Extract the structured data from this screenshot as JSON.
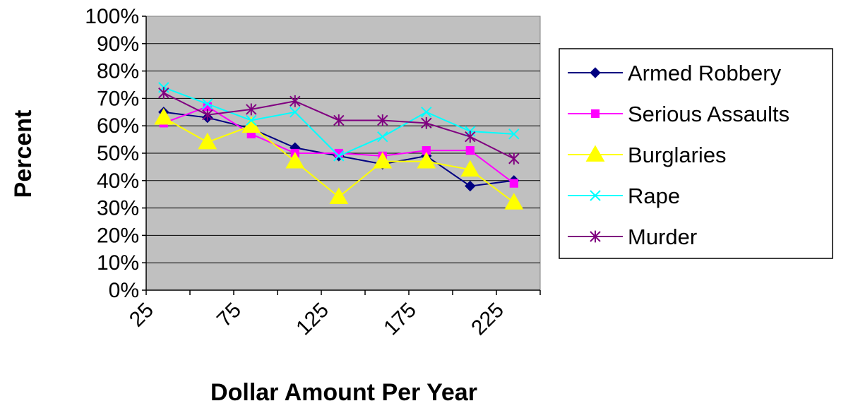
{
  "chart_data": {
    "type": "line",
    "title": "",
    "xlabel": "Dollar Amount Per Year",
    "ylabel": "Percent",
    "x": [
      35,
      60,
      85,
      110,
      135,
      160,
      185,
      210,
      235
    ],
    "x_ticks": [
      "25",
      "75",
      "125",
      "175",
      "225"
    ],
    "x_tick_values": [
      25,
      75,
      125,
      175,
      225
    ],
    "xlim": [
      25,
      250
    ],
    "ylim": [
      0,
      100
    ],
    "y_ticks": [
      "0%",
      "10%",
      "20%",
      "30%",
      "40%",
      "50%",
      "60%",
      "70%",
      "80%",
      "90%",
      "100%"
    ],
    "y_tick_values": [
      0,
      10,
      20,
      30,
      40,
      50,
      60,
      70,
      80,
      90,
      100
    ],
    "grid": "horizontal",
    "plot_background": "#c0c0c0",
    "legend_position": "right",
    "series": [
      {
        "name": "Armed Robbery",
        "color": "#000080",
        "marker": "diamond",
        "values": [
          65,
          63,
          59,
          52,
          49,
          46,
          49,
          38,
          40
        ]
      },
      {
        "name": "Serious Assaults",
        "color": "#ff00ff",
        "marker": "square",
        "values": [
          61,
          67,
          57,
          50,
          50,
          49,
          51,
          51,
          39
        ]
      },
      {
        "name": "Burglaries",
        "color": "#ffff00",
        "marker": "triangle",
        "values": [
          63,
          54,
          60,
          47,
          34,
          47,
          47,
          44,
          32
        ]
      },
      {
        "name": "Rape",
        "color": "#00ffff",
        "marker": "x",
        "values": [
          74,
          68,
          62,
          65,
          49,
          56,
          65,
          58,
          57
        ]
      },
      {
        "name": "Murder",
        "color": "#800080",
        "marker": "star",
        "values": [
          72,
          64,
          66,
          69,
          62,
          62,
          61,
          56,
          48
        ]
      }
    ]
  }
}
